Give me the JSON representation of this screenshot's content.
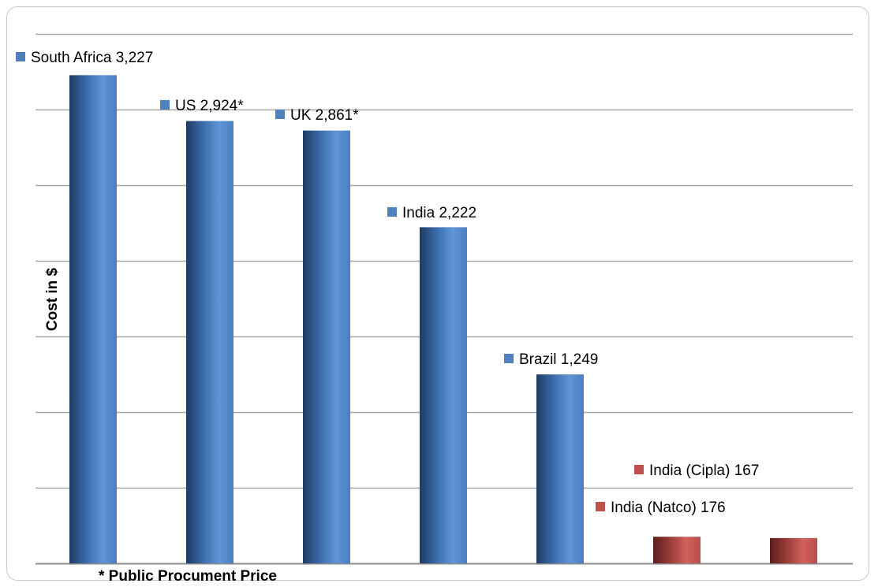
{
  "chart_data": {
    "type": "bar",
    "ylabel": "Cost in $",
    "ylim": [
      0,
      3500
    ],
    "y_tick_step": 500,
    "grid": true,
    "footnote": "* Public Procument Price",
    "categories": [
      "South Africa",
      "US",
      "UK",
      "India",
      "Brazil",
      "India (Natco)",
      "India (Cipla)"
    ],
    "values": [
      3227,
      2924,
      2861,
      2222,
      1249,
      176,
      167
    ],
    "labels": [
      "South Africa 3,227",
      "US 2,924*",
      "UK 2,861*",
      "India 2,222",
      "Brazil 1,249",
      "India (Natco) 176",
      "India (Cipla) 167"
    ],
    "bar_colors": [
      "#4f81bd",
      "#4f81bd",
      "#4f81bd",
      "#4f81bd",
      "#4f81bd",
      "#c0504d",
      "#c0504d"
    ]
  }
}
